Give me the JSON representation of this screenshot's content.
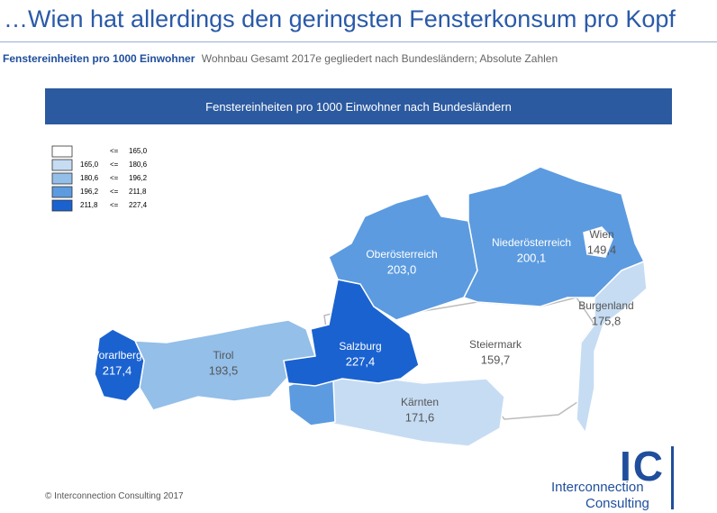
{
  "header": {
    "title": "…Wien hat allerdings den geringsten Fensterkonsum pro Kopf",
    "subtitle_bold": "Fenstereinheiten pro 1000 Einwohner",
    "subtitle": "Wohnbau Gesamt 2017e gegliedert nach Bundesländern; Absolute Zahlen"
  },
  "map": {
    "title": "Fenstereinheiten pro 1000 Einwohner nach Bundesländern",
    "legend": [
      {
        "op": "<=",
        "to": "165,0"
      },
      {
        "from": "165,0",
        "op": "<=",
        "to": "180,6"
      },
      {
        "from": "180,6",
        "op": "<=",
        "to": "196,2"
      },
      {
        "from": "196,2",
        "op": "<=",
        "to": "211,8"
      },
      {
        "from": "211,8",
        "op": "<=",
        "to": "227,4"
      }
    ],
    "regions": [
      {
        "name": "Vorarlberg",
        "value": "217,4"
      },
      {
        "name": "Tirol",
        "value": "193,5"
      },
      {
        "name": "Salzburg",
        "value": "227,4"
      },
      {
        "name": "Oberösterreich",
        "value": "203,0"
      },
      {
        "name": "Niederösterreich",
        "value": "200,1"
      },
      {
        "name": "Wien",
        "value": "149,4"
      },
      {
        "name": "Burgenland",
        "value": "175,8"
      },
      {
        "name": "Steiermark",
        "value": "159,7"
      },
      {
        "name": "Kärnten",
        "value": "171,6"
      }
    ]
  },
  "footer": {
    "copyright": "© Interconnection Consulting 2017"
  },
  "logo": {
    "mark": "IC",
    "line1": "Interconnection",
    "line2": "Consulting"
  }
}
